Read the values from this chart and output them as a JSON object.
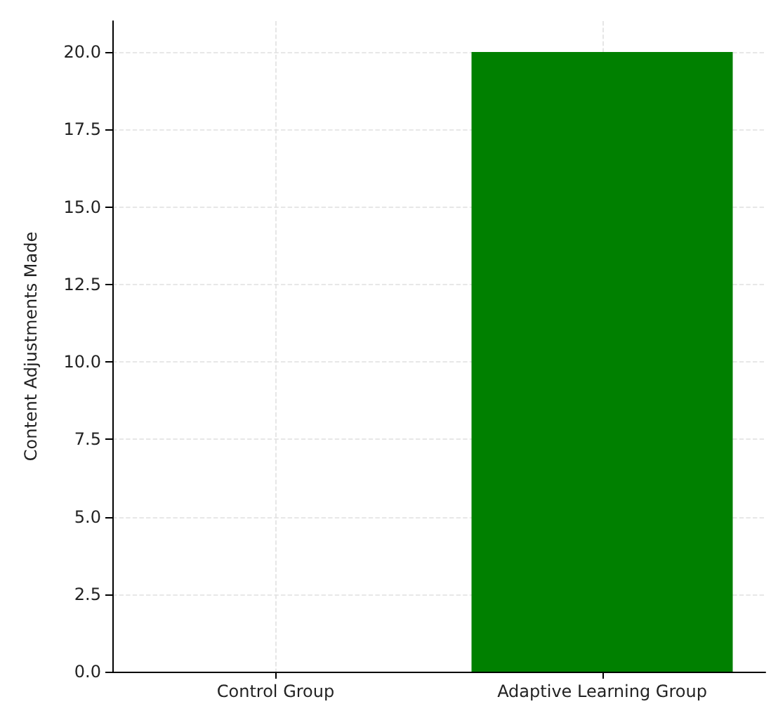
{
  "chart_data": {
    "type": "bar",
    "ylabel": "Content Adjustments Made",
    "categories": [
      "Control Group",
      "Adaptive Learning Group"
    ],
    "values": [
      0,
      20
    ],
    "color": "#008000",
    "ylim": [
      0,
      21
    ],
    "yticks": [
      {
        "value": 0,
        "label": "0.0"
      },
      {
        "value": 2.5,
        "label": "2.5"
      },
      {
        "value": 5,
        "label": "5.0"
      },
      {
        "value": 7.5,
        "label": "7.5"
      },
      {
        "value": 10,
        "label": "10.0"
      },
      {
        "value": 12.5,
        "label": "12.5"
      },
      {
        "value": 15,
        "label": "15.0"
      },
      {
        "value": 17.5,
        "label": "17.5"
      },
      {
        "value": 20,
        "label": "20.0"
      }
    ],
    "grid": true
  }
}
